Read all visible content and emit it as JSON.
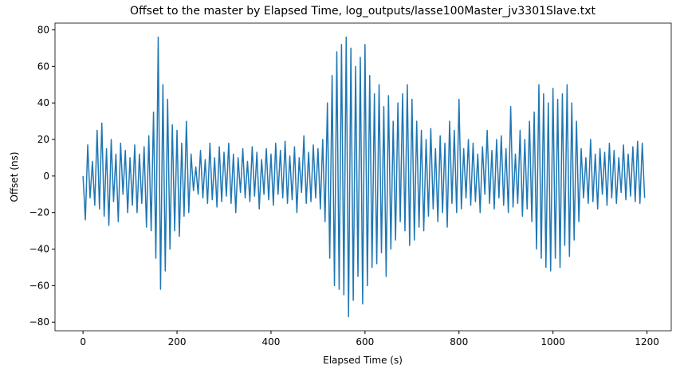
{
  "chart_data": {
    "type": "line",
    "title": "Offset to the master by Elapsed Time, log_outputs/lasse100Master_jv3301Slave.txt",
    "x_label": "Elapsed Time (s)",
    "y_label": "Offset (ns)",
    "x": [
      0,
      5,
      10,
      15,
      20,
      25,
      30,
      35,
      40,
      45,
      50,
      55,
      60,
      65,
      70,
      75,
      80,
      85,
      90,
      95,
      100,
      105,
      110,
      115,
      120,
      125,
      130,
      135,
      140,
      145,
      150,
      155,
      160,
      165,
      170,
      175,
      180,
      185,
      190,
      195,
      200,
      205,
      210,
      215,
      220,
      225,
      230,
      235,
      240,
      245,
      250,
      255,
      260,
      265,
      270,
      275,
      280,
      285,
      290,
      295,
      300,
      305,
      310,
      315,
      320,
      325,
      330,
      335,
      340,
      345,
      350,
      355,
      360,
      365,
      370,
      375,
      380,
      385,
      390,
      395,
      400,
      405,
      410,
      415,
      420,
      425,
      430,
      435,
      440,
      445,
      450,
      455,
      460,
      465,
      470,
      475,
      480,
      485,
      490,
      495,
      500,
      505,
      510,
      515,
      520,
      525,
      530,
      535,
      540,
      545,
      550,
      555,
      560,
      565,
      570,
      575,
      580,
      585,
      590,
      595,
      600,
      605,
      610,
      615,
      620,
      625,
      630,
      635,
      640,
      645,
      650,
      655,
      660,
      665,
      670,
      675,
      680,
      685,
      690,
      695,
      700,
      705,
      710,
      715,
      720,
      725,
      730,
      735,
      740,
      745,
      750,
      755,
      760,
      765,
      770,
      775,
      780,
      785,
      790,
      795,
      800,
      805,
      810,
      815,
      820,
      825,
      830,
      835,
      840,
      845,
      850,
      855,
      860,
      865,
      870,
      875,
      880,
      885,
      890,
      895,
      900,
      905,
      910,
      915,
      920,
      925,
      930,
      935,
      940,
      945,
      950,
      955,
      960,
      965,
      970,
      975,
      980,
      985,
      990,
      995,
      1000,
      1005,
      1010,
      1015,
      1020,
      1025,
      1030,
      1035,
      1040,
      1045,
      1050,
      1055,
      1060,
      1065,
      1070,
      1075,
      1080,
      1085,
      1090,
      1095,
      1100,
      1105,
      1110,
      1115,
      1120,
      1125,
      1130,
      1135,
      1140,
      1145,
      1150,
      1155,
      1160,
      1165,
      1170,
      1175,
      1180,
      1185,
      1190,
      1195
    ],
    "series": [
      {
        "name": "offset",
        "color": "#1f77b4",
        "values": [
          0,
          -24,
          17,
          -12,
          8,
          -16,
          25,
          -18,
          29,
          -22,
          15,
          -27,
          20,
          -14,
          12,
          -25,
          18,
          -10,
          14,
          -20,
          10,
          -16,
          17,
          -20,
          12,
          -15,
          16,
          -28,
          22,
          -30,
          35,
          -45,
          76,
          -62,
          50,
          -52,
          42,
          -40,
          28,
          -30,
          25,
          -33,
          18,
          -22,
          30,
          -20,
          12,
          -8,
          5,
          -10,
          14,
          -12,
          9,
          -15,
          18,
          -13,
          10,
          -17,
          16,
          -14,
          13,
          -11,
          18,
          -15,
          12,
          -20,
          10,
          -9,
          15,
          -12,
          8,
          -14,
          16,
          -11,
          13,
          -18,
          9,
          -10,
          15,
          -13,
          12,
          -16,
          18,
          -10,
          14,
          -12,
          19,
          -15,
          11,
          -13,
          16,
          -20,
          10,
          -9,
          22,
          -15,
          13,
          -14,
          17,
          -12,
          15,
          -18,
          20,
          -25,
          40,
          -45,
          55,
          -60,
          68,
          -62,
          72,
          -65,
          76,
          -77,
          70,
          -68,
          60,
          -55,
          65,
          -70,
          72,
          -60,
          55,
          -50,
          45,
          -48,
          50,
          -42,
          38,
          -55,
          44,
          -40,
          30,
          -35,
          40,
          -25,
          45,
          -30,
          50,
          -38,
          42,
          -35,
          30,
          -28,
          25,
          -30,
          20,
          -22,
          26,
          -18,
          15,
          -25,
          22,
          -20,
          18,
          -28,
          30,
          -15,
          25,
          -20,
          42,
          -18,
          15,
          -12,
          20,
          -16,
          18,
          -14,
          12,
          -20,
          16,
          -10,
          25,
          -15,
          14,
          -18,
          20,
          -12,
          22,
          -16,
          15,
          -20,
          38,
          -17,
          12,
          -15,
          25,
          -22,
          20,
          -18,
          30,
          -25,
          35,
          -40,
          50,
          -45,
          45,
          -50,
          40,
          -52,
          48,
          -45,
          42,
          -50,
          45,
          -38,
          50,
          -44,
          40,
          -35,
          30,
          -25,
          15,
          -12,
          10,
          -15,
          20,
          -14,
          12,
          -18,
          15,
          -10,
          13,
          -16,
          18,
          -12,
          14,
          -15,
          10,
          -9,
          17,
          -13,
          12,
          -11,
          16,
          -14,
          19,
          -15,
          18,
          -12
        ]
      }
    ],
    "xlim": [
      -59.6,
      1251.6
    ],
    "ylim": [
      -84.7,
      83.7
    ],
    "xticks": [
      0,
      200,
      400,
      600,
      800,
      1000,
      1200
    ],
    "yticks": [
      {
        "value": -80,
        "label": "−80"
      },
      {
        "value": -60,
        "label": "−60"
      },
      {
        "value": -40,
        "label": "−40"
      },
      {
        "value": -20,
        "label": "−20"
      },
      0,
      20,
      40,
      60,
      80
    ],
    "grid": false
  }
}
